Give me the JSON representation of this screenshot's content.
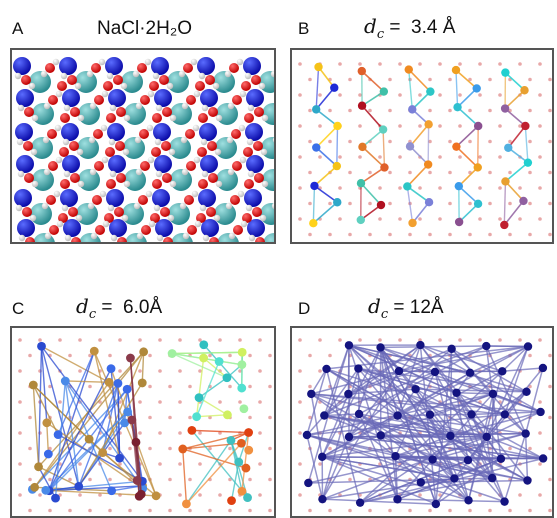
{
  "panels": {
    "A": {
      "letter": "A",
      "title": "NaCl·2H₂O"
    },
    "B": {
      "letter": "B",
      "title_var": "d",
      "title_sub": "c",
      "title_rest": " =  3.4 Å"
    },
    "C": {
      "letter": "C",
      "title_var": "d",
      "title_sub": "c",
      "title_rest": " =  6.0Å"
    },
    "D": {
      "letter": "D",
      "title_var": "d",
      "title_sub": "c",
      "title_rest": " = 12Å"
    }
  },
  "colors": {
    "sodium": "#1a1adb",
    "chloride": "#3aa9a9",
    "oxygen": "#e01010",
    "hydrogen": "#f2f2f2",
    "lattice_dot": "#e8a8a8",
    "node_D": "#141480",
    "edge_D": "#6a6ab8"
  }
}
